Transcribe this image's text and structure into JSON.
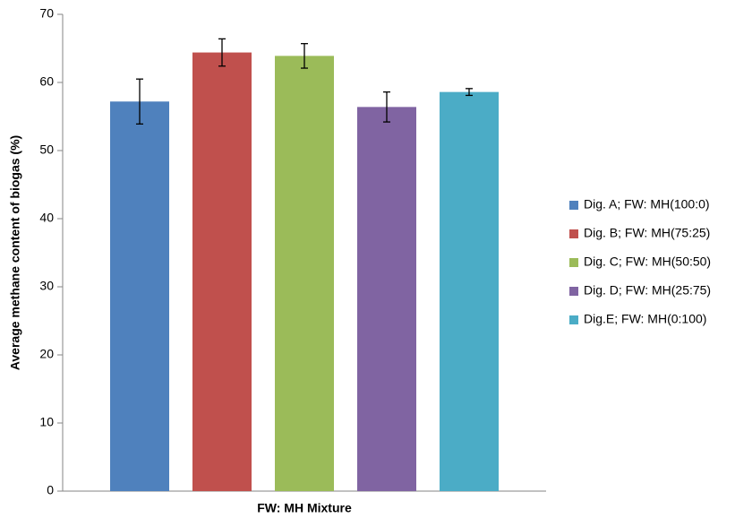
{
  "chart_data": {
    "type": "bar",
    "ylabel": "Average methane content of biogas (%)",
    "xlabel": "FW: MH Mixture",
    "categories": [
      null
    ],
    "series": [
      {
        "name": "Dig. A; FW: MH(100:0)",
        "color": "#4f81bd",
        "values": [
          57.2
        ],
        "errors": [
          3.3
        ]
      },
      {
        "name": "Dig. B; FW: MH(75:25)",
        "color": "#c0504d",
        "values": [
          64.4
        ],
        "errors": [
          2.0
        ]
      },
      {
        "name": "Dig. C; FW: MH(50:50)",
        "color": "#9bbb59",
        "values": [
          63.9
        ],
        "errors": [
          1.8
        ]
      },
      {
        "name": "Dig. D; FW: MH(25:75)",
        "color": "#8064a2",
        "values": [
          56.4
        ],
        "errors": [
          2.2
        ]
      },
      {
        "name": "Dig.E; FW: MH(0:100)",
        "color": "#4bacc6",
        "values": [
          58.6
        ],
        "errors": [
          0.5
        ]
      }
    ],
    "ylim": [
      0,
      70
    ],
    "yticks": [
      0,
      10,
      20,
      30,
      40,
      50,
      60,
      70
    ],
    "legend": "right"
  }
}
